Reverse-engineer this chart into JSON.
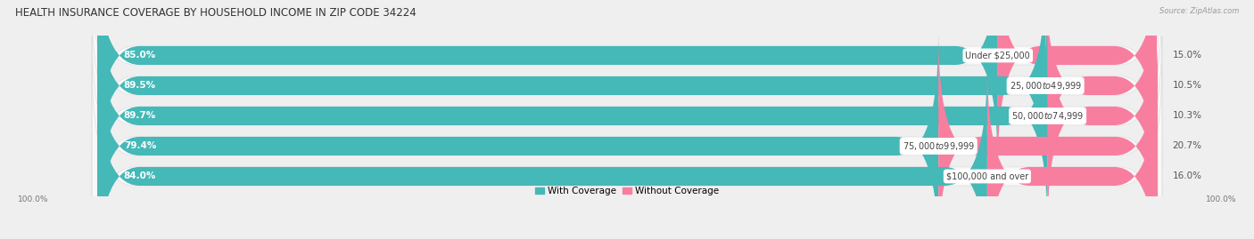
{
  "title": "HEALTH INSURANCE COVERAGE BY HOUSEHOLD INCOME IN ZIP CODE 34224",
  "source": "Source: ZipAtlas.com",
  "categories": [
    "Under $25,000",
    "$25,000 to $49,999",
    "$50,000 to $74,999",
    "$75,000 to $99,999",
    "$100,000 and over"
  ],
  "with_coverage": [
    85.0,
    89.5,
    89.7,
    79.4,
    84.0
  ],
  "without_coverage": [
    15.0,
    10.5,
    10.3,
    20.7,
    16.0
  ],
  "color_with": "#45B8B8",
  "color_without": "#F87EA0",
  "color_with_light": "#7ECFCF",
  "bg_color": "#efefef",
  "bar_bg_color": "#f8f8f8",
  "bar_shadow_color": "#e0e0e0",
  "title_fontsize": 8.5,
  "label_fontsize": 7.5,
  "cat_fontsize": 7.0,
  "legend_fontsize": 7.5,
  "bar_height": 0.62,
  "axis_label_color": "#777777",
  "text_color_inside": "#ffffff",
  "text_color_outside": "#555555",
  "cat_label_color": "#444444"
}
